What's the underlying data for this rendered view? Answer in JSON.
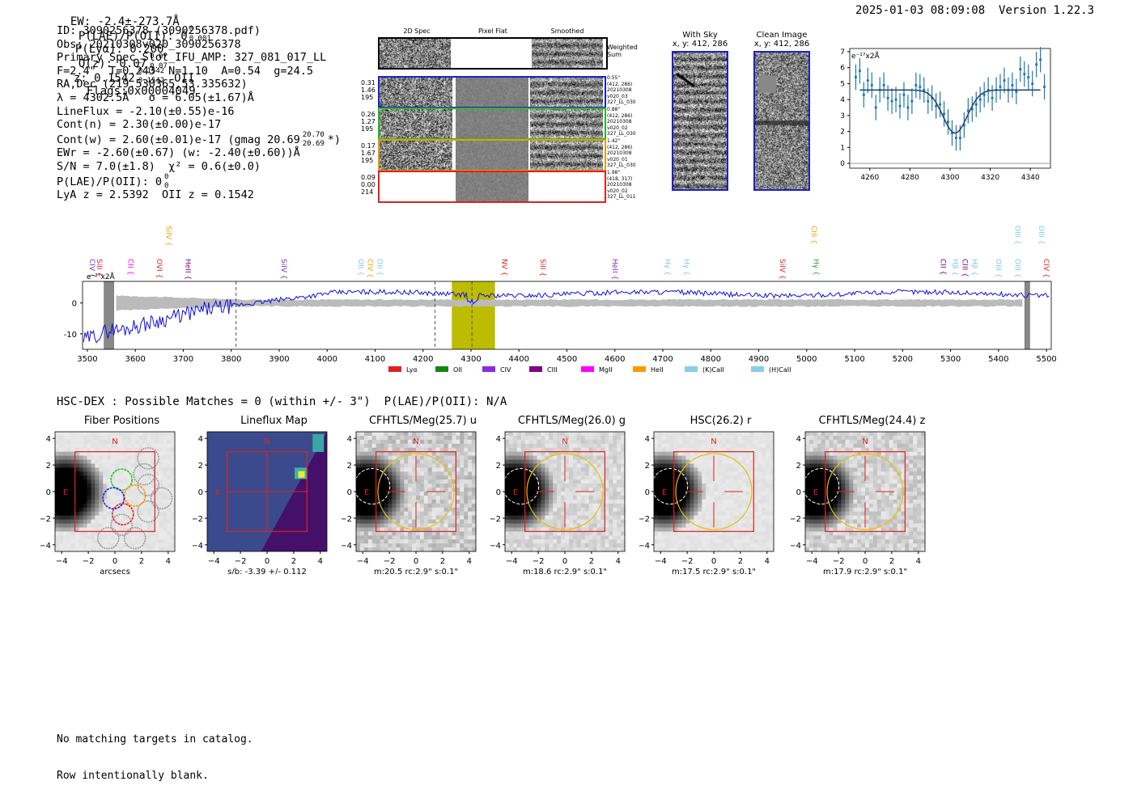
{
  "header": {
    "ew": "EW: -2.4±-273.7Å",
    "plae_label": "P(LAE)/P(OII): 0",
    "plae_sup": "0",
    "plae_sub": "0.001",
    "plya": "P(Lyα): 0.200",
    "qz_label": "Q(z): 0.07",
    "qz_sup": "0.07",
    "qz_sub": "0.07",
    "z_label": "z: 0.1542",
    "z_sup": "0.1542",
    "z_sub": "0.1542",
    "z_line": "OII",
    "flags": "Flags:0x00004049",
    "datetime": "2025-01-03 08:09:08",
    "version": "Version 1.22.3"
  },
  "info": {
    "id": "ID: 3090256378 (3090256378.pdf)",
    "obs": "Obs: 20210308v020_3090256378",
    "primary": "Primary Spec_Slot_IFU_AMP: 327_081_017_LL",
    "params": "F=2.4\"  T=0.243  N=1.10  A=0.54  g=24.5",
    "radec": "RA,Dec (219.530365,53.335632)",
    "lambda": "λ = 4302.5Å   σ = 6.05(±1.67)Å",
    "lineflux": "LineFlux = -2.10(±0.55)e-16",
    "contn": "Cont(n) = 2.30(±0.00)e-17",
    "contw": "Cont(w) = 2.60(±0.01)e-17 (gmag 20.69",
    "gmag_sup": "20.70",
    "gmag_sub": "20.69",
    "contw_tail": "*)",
    "ewr": "EWr = -2.60(±0.67) (w: -2.40(±0.60))Å",
    "sn": "S/N = 7.0(±1.8)  χ² = 0.6(±0.0)",
    "plae2": "P(LAE)/P(OII): 0",
    "plae2_sup": "0",
    "plae2_sub": "0",
    "lyaz": "LyA z = 2.5392  OII z = 0.1542"
  },
  "cutouts": {
    "col_titles": [
      "2D Spec",
      "Pixel Flat",
      "Smoothed"
    ],
    "weighted_label": [
      "Weighted",
      "Sum"
    ],
    "rows": [
      {
        "left": [
          "0.31",
          "1.46",
          "195"
        ],
        "right": [
          "0.55\"",
          "(412, 286)",
          "20210308",
          "v020_03",
          "327_LL_030"
        ],
        "color": "#1f1fd0"
      },
      {
        "left": [
          "0.26",
          "1.27",
          "195"
        ],
        "right": [
          "0.88\"",
          "(412, 286)",
          "20210308",
          "v020_02",
          "327_LL_030"
        ],
        "color": "#22bb22"
      },
      {
        "left": [
          "0.17",
          "1.67",
          "195"
        ],
        "right": [
          "1.42\"",
          "(412, 286)",
          "20210308",
          "v020_01",
          "327_LL_030"
        ],
        "color": "#e0a000"
      },
      {
        "left": [
          "0.09",
          "0.00",
          "214"
        ],
        "right": [
          "1.98\"",
          "(418, 317)",
          "20210308",
          "v020_02",
          "327_LL_011"
        ],
        "color": "#e02020"
      }
    ]
  },
  "sky": {
    "with_sky_title": "With Sky",
    "with_sky_xy": "x, y: 412, 286",
    "clean_title": "Clean Image",
    "clean_xy": "x, y: 412, 286"
  },
  "chart_data": [
    {
      "type": "line",
      "id": "line-fit",
      "ylabel": "e⁻¹⁷x2Å",
      "xlim": [
        4250,
        4350
      ],
      "ylim": [
        -0.3,
        7.2
      ],
      "xticks": [
        4260,
        4280,
        4300,
        4320,
        4340
      ],
      "yticks": [
        0,
        1,
        2,
        3,
        4,
        5,
        6,
        7
      ],
      "series": [
        {
          "kind": "errorbar",
          "x": [
            4253,
            4255,
            4257,
            4259,
            4261,
            4263,
            4265,
            4267,
            4269,
            4271,
            4273,
            4275,
            4277,
            4279,
            4281,
            4283,
            4285,
            4287,
            4289,
            4291,
            4293,
            4295,
            4297,
            4299,
            4301,
            4303,
            4305,
            4307,
            4309,
            4311,
            4313,
            4315,
            4317,
            4319,
            4321,
            4323,
            4325,
            4327,
            4329,
            4331,
            4333,
            4335,
            4337,
            4339,
            4341,
            4343,
            4345,
            4347
          ],
          "y": [
            5.4,
            5.8,
            4.3,
            5.2,
            4.9,
            3.5,
            4.6,
            4.9,
            4.1,
            3.9,
            4.0,
            3.6,
            4.3,
            3.5,
            3.9,
            4.9,
            4.8,
            4.6,
            3.9,
            4.1,
            3.6,
            3.7,
            3.1,
            2.6,
            1.9,
            1.6,
            1.6,
            2.4,
            3.3,
            3.4,
            3.7,
            4.0,
            4.3,
            4.6,
            4.1,
            4.6,
            4.8,
            5.2,
            4.6,
            4.9,
            4.5,
            5.9,
            5.6,
            5.4,
            5.0,
            6.2,
            6.5,
            4.8
          ],
          "yerr": [
            0.8,
            0.8,
            0.8,
            0.8,
            0.8,
            0.8,
            0.8,
            0.8,
            0.8,
            0.8,
            0.8,
            0.8,
            0.8,
            0.8,
            0.8,
            0.8,
            0.8,
            0.8,
            0.8,
            0.8,
            0.8,
            0.8,
            0.8,
            0.8,
            0.8,
            0.8,
            0.8,
            0.8,
            0.8,
            0.8,
            0.8,
            0.8,
            0.8,
            0.8,
            0.8,
            0.8,
            0.8,
            0.8,
            0.8,
            0.8,
            0.8,
            0.8,
            0.8,
            0.8,
            0.8,
            0.8,
            0.8,
            0.8
          ]
        },
        {
          "kind": "fit",
          "continuum": 4.6,
          "center": 4302.5,
          "sigma": 6.05,
          "depth": 2.7
        }
      ]
    },
    {
      "type": "line",
      "id": "full-spectrum",
      "ylabel": "e⁻¹⁷x2Å",
      "xlim": [
        3490,
        5510
      ],
      "ylim": [
        -15,
        7
      ],
      "xticks": [
        3500,
        3600,
        3700,
        3800,
        3900,
        4000,
        4100,
        4200,
        4300,
        4400,
        4500,
        4600,
        4700,
        4800,
        4900,
        5000,
        5100,
        5200,
        5300,
        5400,
        5500
      ],
      "yticks": [
        0,
        -10
      ],
      "highlight_band": [
        4260,
        4350
      ],
      "dashed_lines": [
        3810,
        4225,
        4302
      ],
      "masked_bands": [
        [
          3535,
          3555
        ],
        [
          5455,
          5465
        ]
      ],
      "line_labels": [
        {
          "label": "CIV",
          "x": 3500,
          "color": "#7b2fbf"
        },
        {
          "label": "SiII",
          "x": 3515,
          "color": "#e02020"
        },
        {
          "label": "CII",
          "x": 3580,
          "color": "#ff00ff"
        },
        {
          "label": "OVI",
          "x": 3640,
          "color": "#e02020"
        },
        {
          "label": "HeII",
          "x": 3700,
          "color": "#800080"
        },
        {
          "label": "SiIV",
          "x": 3660,
          "color": "#ff9900",
          "high": true
        },
        {
          "label": "SiIV",
          "x": 3900,
          "color": "#7b2fbf"
        },
        {
          "label": "OII",
          "x": 4060,
          "color": "#7ec8e3"
        },
        {
          "label": "CIV",
          "x": 4080,
          "color": "#ff9900"
        },
        {
          "label": "OII",
          "x": 4100,
          "color": "#7ec8e3"
        },
        {
          "label": "NV",
          "x": 4360,
          "color": "#e02020"
        },
        {
          "label": "SiII",
          "x": 4440,
          "color": "#e02020"
        },
        {
          "label": "HeII",
          "x": 4590,
          "color": "#7b2fbf"
        },
        {
          "label": "Hγ",
          "x": 4700,
          "color": "#7ec8e3"
        },
        {
          "label": "Hγ",
          "x": 4740,
          "color": "#7ec8e3"
        },
        {
          "label": "SiIV",
          "x": 4940,
          "color": "#e02020"
        },
        {
          "label": "CIII",
          "x": 5005,
          "color": "#ff9900",
          "high": true
        },
        {
          "label": "Hγ",
          "x": 5010,
          "color": "#2ca02c"
        },
        {
          "label": "CII",
          "x": 5275,
          "color": "#800080"
        },
        {
          "label": "Hβ",
          "x": 5300,
          "color": "#7ec8e3"
        },
        {
          "label": "CIII",
          "x": 5320,
          "color": "#800080"
        },
        {
          "label": "Hβ",
          "x": 5340,
          "color": "#7ec8e3"
        },
        {
          "label": "OIII",
          "x": 5390,
          "color": "#7ec8e3"
        },
        {
          "label": "OIII",
          "x": 5430,
          "color": "#7ec8e3"
        },
        {
          "label": "OIII",
          "x": 5430,
          "color": "#7ec8e3",
          "high": true
        },
        {
          "label": "OIII",
          "x": 5480,
          "color": "#7ec8e3",
          "high": true
        },
        {
          "label": "CIV",
          "x": 5490,
          "color": "#e02020"
        }
      ],
      "legend": [
        {
          "label": "Lyα",
          "color": "#e02020"
        },
        {
          "label": "OII",
          "color": "#118811"
        },
        {
          "label": "CIV",
          "color": "#8a2be2"
        },
        {
          "label": "CIII",
          "color": "#800080"
        },
        {
          "label": "MgII",
          "color": "#ff00ff"
        },
        {
          "label": "HeII",
          "color": "#ff9900"
        },
        {
          "label": "(K)CaII",
          "color": "#87ceeb"
        },
        {
          "label": "(H)CaII",
          "color": "#87ceeb"
        }
      ]
    }
  ],
  "hsc": {
    "matches": "HSC-DEX : Possible Matches = 0 (within +/- 3\")  P(LAE)/P(OII): N/A"
  },
  "panels": [
    {
      "title": "Fiber Positions",
      "xlabel": "arcsecs",
      "type": "fibers"
    },
    {
      "title": "Lineflux Map",
      "xlabel": "s/b: -3.39 +/- 0.112",
      "type": "lineflux"
    },
    {
      "title": "CFHTLS/Meg(25.7) u",
      "xlabel": "m:20.5 rc:2.9\"  s:0.1\"",
      "type": "img",
      "noise": 1
    },
    {
      "title": "CFHTLS/Meg(26.0) g",
      "xlabel": "m:18.6 rc:2.9\"  s:0.1\"",
      "type": "img",
      "noise": 0.6
    },
    {
      "title": "HSC(26.2) r",
      "xlabel": "m:17.5 rc:2.9\"  s:0.1\"",
      "type": "img",
      "noise": 0.2
    },
    {
      "title": "CFHTLS/Meg(24.4) z",
      "xlabel": "m:17.9 rc:2.9\"  s:0.1\"",
      "type": "img",
      "noise": 0.8
    }
  ],
  "panel_axes": {
    "ticks": [
      -4,
      -2,
      0,
      2,
      4
    ],
    "north": "N",
    "east": "E"
  },
  "footer": {
    "line1": "No matching targets in catalog.",
    "line2": "Row intentionally blank."
  }
}
